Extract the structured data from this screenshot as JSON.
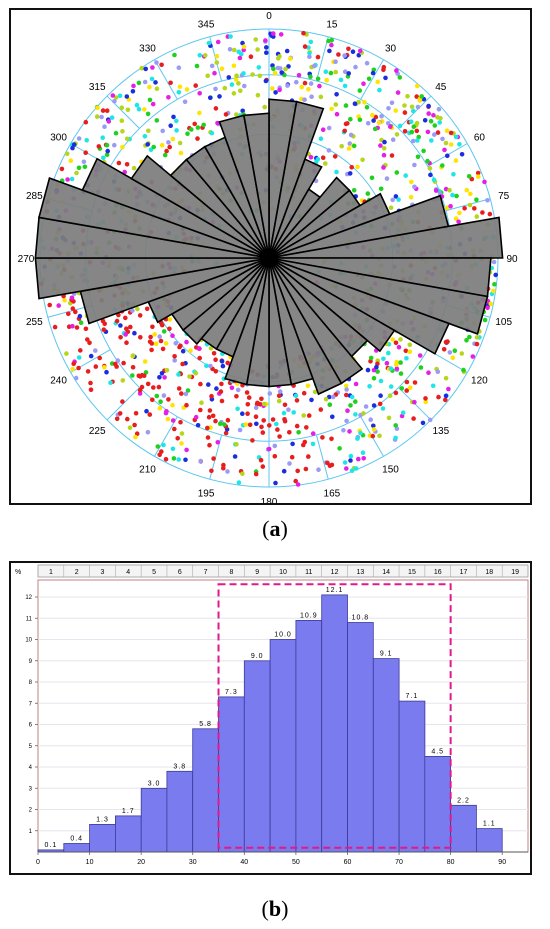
{
  "captions": {
    "a": "a",
    "b": "b"
  },
  "chart_data": [
    {
      "type": "rose",
      "angle_labels": [
        "0",
        "15",
        "30",
        "45",
        "60",
        "75",
        "90",
        "105",
        "120",
        "135",
        "150",
        "165",
        "180",
        "195",
        "210",
        "225",
        "240",
        "255",
        "270",
        "285",
        "300",
        "315",
        "330",
        "345"
      ],
      "bins": [
        {
          "start": 0,
          "end": 10,
          "value": 0.68
        },
        {
          "start": 10,
          "end": 20,
          "value": 0.68
        },
        {
          "start": 20,
          "end": 30,
          "value": 0.45
        },
        {
          "start": 30,
          "end": 40,
          "value": 0.34
        },
        {
          "start": 40,
          "end": 50,
          "value": 0.45
        },
        {
          "start": 50,
          "end": 60,
          "value": 0.45
        },
        {
          "start": 60,
          "end": 70,
          "value": 0.55
        },
        {
          "start": 70,
          "end": 80,
          "value": 0.78
        },
        {
          "start": 80,
          "end": 90,
          "value": 1.0
        },
        {
          "start": 90,
          "end": 100,
          "value": 0.95
        },
        {
          "start": 100,
          "end": 110,
          "value": 0.95
        },
        {
          "start": 110,
          "end": 120,
          "value": 0.82
        },
        {
          "start": 120,
          "end": 130,
          "value": 0.62
        },
        {
          "start": 130,
          "end": 140,
          "value": 0.55
        },
        {
          "start": 140,
          "end": 150,
          "value": 0.62
        },
        {
          "start": 150,
          "end": 160,
          "value": 0.62
        },
        {
          "start": 160,
          "end": 170,
          "value": 0.55
        },
        {
          "start": 170,
          "end": 180,
          "value": 0.55
        },
        {
          "start": 180,
          "end": 190,
          "value": 0.55
        },
        {
          "start": 190,
          "end": 200,
          "value": 0.55
        },
        {
          "start": 200,
          "end": 210,
          "value": 0.45
        },
        {
          "start": 210,
          "end": 220,
          "value": 0.45
        },
        {
          "start": 220,
          "end": 230,
          "value": 0.48
        },
        {
          "start": 230,
          "end": 240,
          "value": 0.48
        },
        {
          "start": 240,
          "end": 250,
          "value": 0.55
        },
        {
          "start": 250,
          "end": 260,
          "value": 0.82
        },
        {
          "start": 260,
          "end": 270,
          "value": 1.0
        },
        {
          "start": 270,
          "end": 280,
          "value": 1.0
        },
        {
          "start": 280,
          "end": 290,
          "value": 1.0
        },
        {
          "start": 290,
          "end": 300,
          "value": 0.85
        },
        {
          "start": 300,
          "end": 310,
          "value": 0.68
        },
        {
          "start": 310,
          "end": 320,
          "value": 0.55
        },
        {
          "start": 320,
          "end": 330,
          "value": 0.55
        },
        {
          "start": 330,
          "end": 340,
          "value": 0.55
        },
        {
          "start": 340,
          "end": 350,
          "value": 0.62
        },
        {
          "start": 350,
          "end": 360,
          "value": 0.62
        }
      ],
      "point_colors": [
        "#e81e1e",
        "#1fd11f",
        "#1a2ee0",
        "#ffe400",
        "#e61ee6",
        "#1ee6e6",
        "#b5d61a",
        "#9b9bf5"
      ],
      "colors": {
        "bar_fill": "#7d7d7d",
        "bar_stroke": "#000000",
        "grid": "#5cc6f0"
      }
    },
    {
      "type": "bar",
      "ylabel": "%",
      "x_ticks": [
        "0",
        "10",
        "20",
        "30",
        "40",
        "50",
        "60",
        "70",
        "80",
        "90"
      ],
      "top_labels": [
        "1",
        "2",
        "3",
        "4",
        "5",
        "6",
        "7",
        "8",
        "9",
        "10",
        "11",
        "12",
        "13",
        "14",
        "15",
        "16",
        "17",
        "18",
        "19"
      ],
      "y_ticks": [
        "1",
        "2",
        "3",
        "4",
        "5",
        "6",
        "7",
        "8",
        "9",
        "10",
        "11",
        "12"
      ],
      "xlim": [
        0,
        95
      ],
      "ylim": [
        0,
        12.8
      ],
      "bins": [
        {
          "start": 0,
          "end": 5,
          "value": 0.1,
          "label": "0.1"
        },
        {
          "start": 5,
          "end": 10,
          "value": 0.4,
          "label": "0.4"
        },
        {
          "start": 10,
          "end": 15,
          "value": 1.3,
          "label": "1.3"
        },
        {
          "start": 15,
          "end": 20,
          "value": 1.7,
          "label": "1.7"
        },
        {
          "start": 20,
          "end": 25,
          "value": 3.0,
          "label": "3.0"
        },
        {
          "start": 25,
          "end": 30,
          "value": 3.8,
          "label": "3.8"
        },
        {
          "start": 30,
          "end": 35,
          "value": 5.8,
          "label": "5.8"
        },
        {
          "start": 35,
          "end": 40,
          "value": 7.3,
          "label": "7.3"
        },
        {
          "start": 40,
          "end": 45,
          "value": 9.0,
          "label": "9.0"
        },
        {
          "start": 45,
          "end": 50,
          "value": 10.0,
          "label": "10.0"
        },
        {
          "start": 50,
          "end": 55,
          "value": 10.9,
          "label": "10.9"
        },
        {
          "start": 55,
          "end": 60,
          "value": 12.1,
          "label": "12.1"
        },
        {
          "start": 60,
          "end": 65,
          "value": 10.8,
          "label": "10.8"
        },
        {
          "start": 65,
          "end": 70,
          "value": 9.1,
          "label": "9.1"
        },
        {
          "start": 70,
          "end": 75,
          "value": 7.1,
          "label": "7.1"
        },
        {
          "start": 75,
          "end": 80,
          "value": 4.5,
          "label": "4.5"
        },
        {
          "start": 80,
          "end": 85,
          "value": 2.2,
          "label": "2.2"
        },
        {
          "start": 85,
          "end": 90,
          "value": 1.1,
          "label": "1.1"
        }
      ],
      "highlight_range": {
        "x0": 35,
        "x1": 80,
        "y0": 0.2,
        "y1": 12.6
      },
      "colors": {
        "bar_fill": "#7b7bf0",
        "highlight": "#e0198c",
        "axis": "#555555"
      }
    }
  ]
}
